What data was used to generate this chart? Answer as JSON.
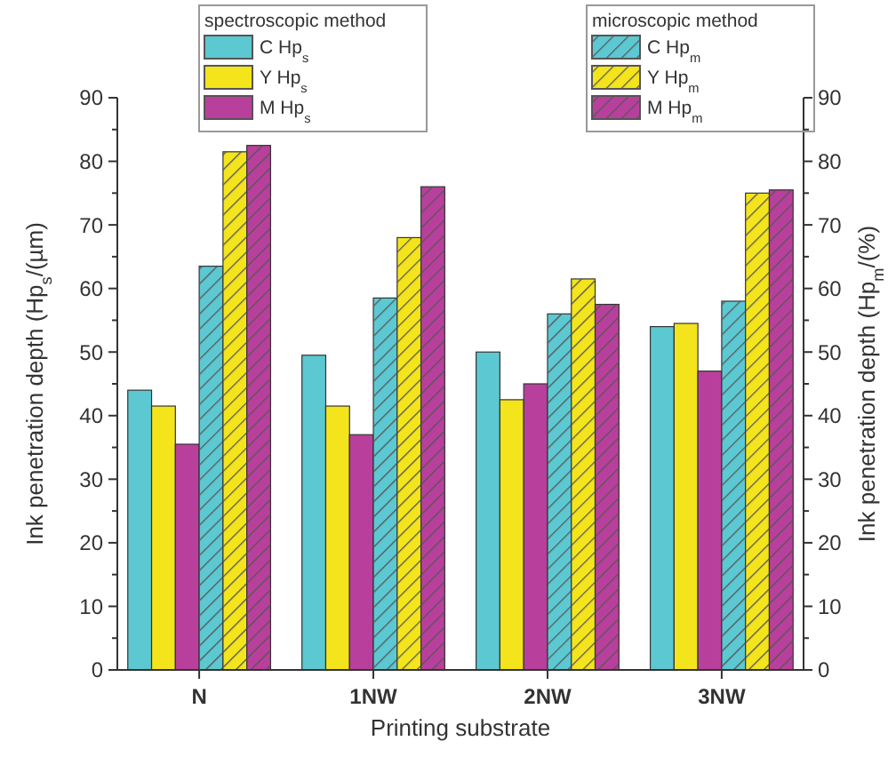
{
  "chart_data": {
    "type": "bar",
    "xlabel": "Printing substrate",
    "ylabel": "Ink penetration depth (Hp$_{s}$/(µm)",
    "y2label": "Ink penetration depth (Hp$_{m}$/(%)",
    "categories": [
      "N",
      "1NW",
      "2NW",
      "3NW"
    ],
    "series": [
      {
        "name": "C Hp$_{s}$",
        "color": "#5cc8d2",
        "values": [
          44,
          49.5,
          50,
          54
        ]
      },
      {
        "name": "Y Hp$_{s}$",
        "color": "#f4e41c",
        "values": [
          41.5,
          41.5,
          42.5,
          54.5
        ]
      },
      {
        "name": "M Hp$_{s}$",
        "color": "#b8409c",
        "values": [
          35.5,
          37,
          45,
          47
        ]
      },
      {
        "name": "C Hp$_{m}$",
        "color": "#5cc8d2",
        "axis": "y2",
        "values": [
          63.5,
          58.5,
          56,
          58
        ]
      },
      {
        "name": "Y Hp$_{m}$",
        "color": "#f4e41c",
        "axis": "y2",
        "values": [
          81.5,
          68,
          61.5,
          75
        ]
      },
      {
        "name": "M Hp$_{m}$",
        "color": "#b8409c",
        "axis": "y2",
        "values": [
          82.5,
          76,
          57.5,
          75.5
        ]
      }
    ],
    "ylim": [
      0,
      90
    ],
    "yticks": [
      0,
      10,
      20,
      30,
      40,
      50,
      60,
      70,
      80,
      90
    ],
    "y2lim": [
      0,
      90
    ],
    "y2ticks": [
      0,
      10,
      20,
      30,
      40,
      50,
      60,
      70,
      80,
      90
    ],
    "legend": "top",
    "grid": false,
    "annotations": [
      "spectroscopic method",
      "microscopic method"
    ]
  }
}
